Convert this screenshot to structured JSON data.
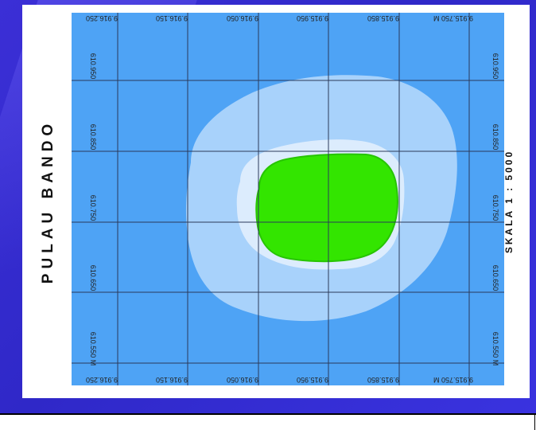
{
  "title": "PULAU BANDO",
  "scale_label": "SKALA 1 : 5000",
  "top_labels": [
    "9.916.250",
    "9.916.150",
    "9.916.050",
    "9.915.950",
    "9.915.850",
    "9.915.750 M"
  ],
  "bottom_labels": [
    "9.916.250",
    "9.916.150",
    "9.916.050",
    "9.915.950",
    "9.915.850",
    "9.915.750 M"
  ],
  "left_labels": [
    "610.550 M",
    "610.650",
    "610.750",
    "610.850",
    "610.950"
  ],
  "right_labels": [
    "610.550 M",
    "610.650",
    "610.750",
    "610.850",
    "610.950"
  ],
  "colors": {
    "deep_water": "#4ea3f5",
    "mid_water": "#a8d2fb",
    "shallow_water": "#dcecfd",
    "land": "#33e500",
    "land_border": "#27c400",
    "grid": "#2b3a5a"
  }
}
